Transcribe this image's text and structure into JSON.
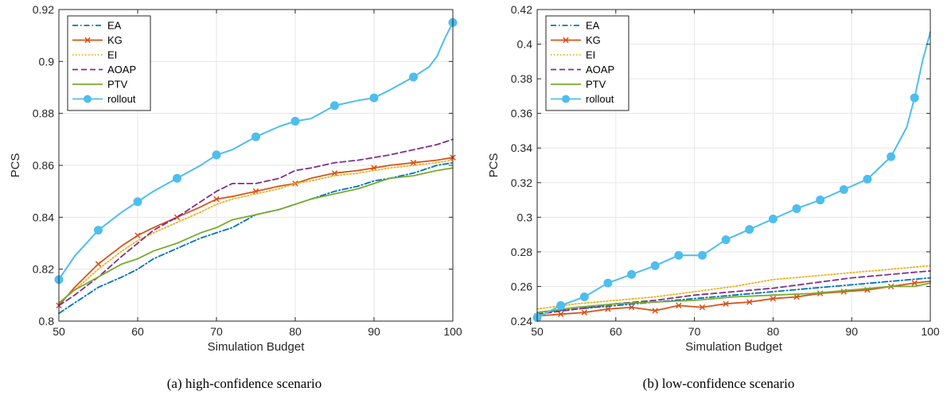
{
  "chart_data": [
    {
      "type": "line",
      "caption": "(a) high-confidence scenario",
      "xlabel": "Simulation Budget",
      "ylabel": "PCS",
      "xlim": [
        50,
        100
      ],
      "ylim": [
        0.8,
        0.92
      ],
      "xticks": [
        50,
        60,
        70,
        80,
        90,
        100
      ],
      "yticks": [
        0.8,
        0.82,
        0.84,
        0.86,
        0.88,
        0.9,
        0.92
      ],
      "ytick_labels": [
        "0.8",
        "0.82",
        "0.84",
        "0.86",
        "0.88",
        "0.9",
        "0.92"
      ],
      "grid": true,
      "legend_position": "top-left",
      "series": [
        {
          "name": "EA",
          "color": "#0072BD",
          "dash": "dashdot",
          "marker": "none",
          "x": [
            50,
            52,
            55,
            58,
            60,
            62,
            65,
            68,
            70,
            72,
            75,
            78,
            80,
            82,
            85,
            88,
            90,
            92,
            95,
            98,
            100
          ],
          "y": [
            0.803,
            0.807,
            0.813,
            0.817,
            0.82,
            0.824,
            0.828,
            0.832,
            0.834,
            0.836,
            0.841,
            0.843,
            0.845,
            0.847,
            0.85,
            0.852,
            0.854,
            0.855,
            0.857,
            0.86,
            0.861
          ]
        },
        {
          "name": "KG",
          "color": "#D95319",
          "dash": "solid",
          "marker": "x",
          "x": [
            50,
            52,
            55,
            58,
            60,
            62,
            65,
            68,
            70,
            72,
            75,
            78,
            80,
            82,
            85,
            88,
            90,
            92,
            95,
            98,
            100
          ],
          "y": [
            0.806,
            0.813,
            0.822,
            0.829,
            0.833,
            0.836,
            0.84,
            0.844,
            0.847,
            0.848,
            0.85,
            0.852,
            0.853,
            0.855,
            0.857,
            0.858,
            0.859,
            0.86,
            0.861,
            0.862,
            0.863
          ]
        },
        {
          "name": "EI",
          "color": "#EDB120",
          "dash": "dotted",
          "marker": "none",
          "x": [
            50,
            52,
            55,
            58,
            60,
            62,
            65,
            68,
            70,
            72,
            75,
            78,
            80,
            82,
            85,
            88,
            90,
            92,
            95,
            98,
            100
          ],
          "y": [
            0.807,
            0.812,
            0.82,
            0.827,
            0.831,
            0.834,
            0.838,
            0.842,
            0.845,
            0.847,
            0.849,
            0.851,
            0.853,
            0.854,
            0.856,
            0.857,
            0.858,
            0.859,
            0.86,
            0.861,
            0.862
          ]
        },
        {
          "name": "AOAP",
          "color": "#7E2F8E",
          "dash": "dashed",
          "marker": "none",
          "x": [
            50,
            52,
            55,
            58,
            60,
            62,
            65,
            68,
            70,
            72,
            75,
            78,
            80,
            82,
            85,
            88,
            90,
            92,
            95,
            98,
            100
          ],
          "y": [
            0.806,
            0.81,
            0.817,
            0.825,
            0.83,
            0.835,
            0.84,
            0.846,
            0.85,
            0.853,
            0.853,
            0.855,
            0.858,
            0.859,
            0.861,
            0.862,
            0.863,
            0.864,
            0.866,
            0.868,
            0.87
          ]
        },
        {
          "name": "PTV",
          "color": "#77AC30",
          "dash": "solid",
          "marker": "none",
          "x": [
            50,
            52,
            55,
            58,
            60,
            62,
            65,
            68,
            70,
            72,
            75,
            78,
            80,
            82,
            85,
            88,
            90,
            92,
            95,
            98,
            100
          ],
          "y": [
            0.807,
            0.812,
            0.817,
            0.822,
            0.824,
            0.827,
            0.83,
            0.834,
            0.836,
            0.839,
            0.841,
            0.843,
            0.845,
            0.847,
            0.849,
            0.851,
            0.853,
            0.855,
            0.856,
            0.858,
            0.859
          ]
        },
        {
          "name": "rollout",
          "color": "#4DBEEE",
          "dash": "solid",
          "marker": "circle",
          "x": [
            50,
            52,
            55,
            58,
            60,
            62,
            65,
            68,
            70,
            72,
            75,
            78,
            80,
            82,
            85,
            88,
            90,
            92,
            95,
            97,
            98,
            99,
            100
          ],
          "y": [
            0.816,
            0.825,
            0.835,
            0.842,
            0.846,
            0.85,
            0.855,
            0.86,
            0.864,
            0.866,
            0.871,
            0.875,
            0.877,
            0.878,
            0.883,
            0.885,
            0.886,
            0.889,
            0.894,
            0.898,
            0.902,
            0.909,
            0.915
          ]
        }
      ]
    },
    {
      "type": "line",
      "caption": "(b) low-confidence scenario",
      "xlabel": "Simulation Budget",
      "ylabel": "PCS",
      "xlim": [
        50,
        100
      ],
      "ylim": [
        0.24,
        0.42
      ],
      "xticks": [
        50,
        60,
        70,
        80,
        90,
        100
      ],
      "yticks": [
        0.24,
        0.26,
        0.28,
        0.3,
        0.32,
        0.34,
        0.36,
        0.38,
        0.4,
        0.42
      ],
      "ytick_labels": [
        "0.24",
        "0.26",
        "0.28",
        "0.3",
        "0.32",
        "0.34",
        "0.36",
        "0.38",
        "0.4",
        "0.42"
      ],
      "grid": true,
      "legend_position": "top-left",
      "series": [
        {
          "name": "EA",
          "color": "#0072BD",
          "dash": "dashdot",
          "marker": "none",
          "x": [
            50,
            55,
            60,
            65,
            70,
            75,
            80,
            85,
            90,
            95,
            100
          ],
          "y": [
            0.245,
            0.247,
            0.249,
            0.251,
            0.253,
            0.255,
            0.257,
            0.259,
            0.261,
            0.263,
            0.265
          ]
        },
        {
          "name": "KG",
          "color": "#D95319",
          "dash": "solid",
          "marker": "x",
          "x": [
            50,
            53,
            56,
            59,
            62,
            65,
            68,
            71,
            74,
            77,
            80,
            83,
            86,
            89,
            92,
            95,
            98,
            100
          ],
          "y": [
            0.243,
            0.244,
            0.245,
            0.247,
            0.248,
            0.246,
            0.249,
            0.248,
            0.25,
            0.251,
            0.253,
            0.254,
            0.256,
            0.257,
            0.258,
            0.26,
            0.262,
            0.263
          ]
        },
        {
          "name": "EI",
          "color": "#EDB120",
          "dash": "dotted",
          "marker": "none",
          "x": [
            50,
            55,
            60,
            65,
            70,
            75,
            80,
            85,
            90,
            95,
            100
          ],
          "y": [
            0.247,
            0.25,
            0.252,
            0.254,
            0.257,
            0.26,
            0.264,
            0.266,
            0.268,
            0.27,
            0.272
          ]
        },
        {
          "name": "AOAP",
          "color": "#7E2F8E",
          "dash": "dashed",
          "marker": "none",
          "x": [
            50,
            55,
            60,
            65,
            70,
            75,
            80,
            85,
            90,
            95,
            100
          ],
          "y": [
            0.244,
            0.247,
            0.25,
            0.252,
            0.255,
            0.257,
            0.259,
            0.262,
            0.265,
            0.267,
            0.269
          ]
        },
        {
          "name": "PTV",
          "color": "#77AC30",
          "dash": "solid",
          "marker": "none",
          "x": [
            50,
            55,
            60,
            65,
            70,
            75,
            80,
            85,
            90,
            95,
            98,
            100
          ],
          "y": [
            0.245,
            0.248,
            0.25,
            0.251,
            0.252,
            0.254,
            0.255,
            0.256,
            0.258,
            0.26,
            0.26,
            0.262
          ]
        },
        {
          "name": "rollout",
          "color": "#4DBEEE",
          "dash": "solid",
          "marker": "circle",
          "x": [
            50,
            53,
            56,
            59,
            62,
            65,
            68,
            71,
            74,
            77,
            80,
            83,
            86,
            89,
            92,
            95,
            97,
            98,
            99,
            100
          ],
          "y": [
            0.242,
            0.249,
            0.254,
            0.262,
            0.267,
            0.272,
            0.278,
            0.278,
            0.287,
            0.293,
            0.299,
            0.305,
            0.31,
            0.316,
            0.322,
            0.335,
            0.352,
            0.369,
            0.39,
            0.407
          ]
        }
      ]
    }
  ]
}
